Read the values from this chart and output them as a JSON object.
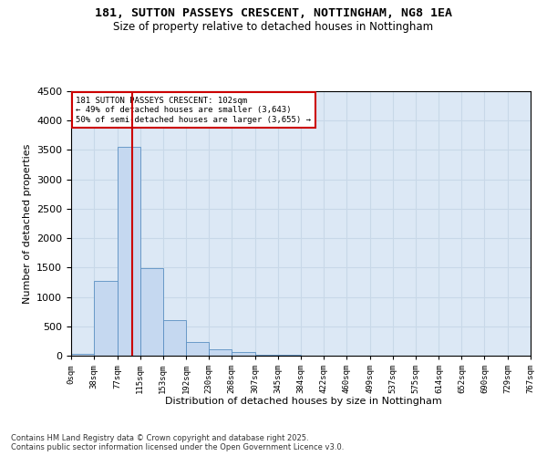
{
  "title1": "181, SUTTON PASSEYS CRESCENT, NOTTINGHAM, NG8 1EA",
  "title2": "Size of property relative to detached houses in Nottingham",
  "xlabel": "Distribution of detached houses by size in Nottingham",
  "ylabel": "Number of detached properties",
  "bar_edges": [
    0,
    38,
    77,
    115,
    153,
    192,
    230,
    268,
    307,
    345,
    384,
    422,
    460,
    499,
    537,
    575,
    614,
    652,
    690,
    729,
    767
  ],
  "bar_heights": [
    30,
    1270,
    3560,
    1490,
    600,
    230,
    105,
    55,
    20,
    10,
    5,
    3,
    2,
    1,
    1,
    0,
    0,
    0,
    0,
    0
  ],
  "bar_color": "#c5d8f0",
  "bar_edge_color": "#5a8fc2",
  "vline_color": "#cc0000",
  "vline_x": 102,
  "annotation_box_color": "#cc0000",
  "property_label": "181 SUTTON PASSEYS CRESCENT: 102sqm",
  "annotation_line1": "← 49% of detached houses are smaller (3,643)",
  "annotation_line2": "50% of semi-detached houses are larger (3,655) →",
  "ylim": [
    0,
    4500
  ],
  "yticks": [
    0,
    500,
    1000,
    1500,
    2000,
    2500,
    3000,
    3500,
    4000,
    4500
  ],
  "grid_color": "#c8d8e8",
  "bg_color": "#dce8f5",
  "footnote1": "Contains HM Land Registry data © Crown copyright and database right 2025.",
  "footnote2": "Contains public sector information licensed under the Open Government Licence v3.0."
}
